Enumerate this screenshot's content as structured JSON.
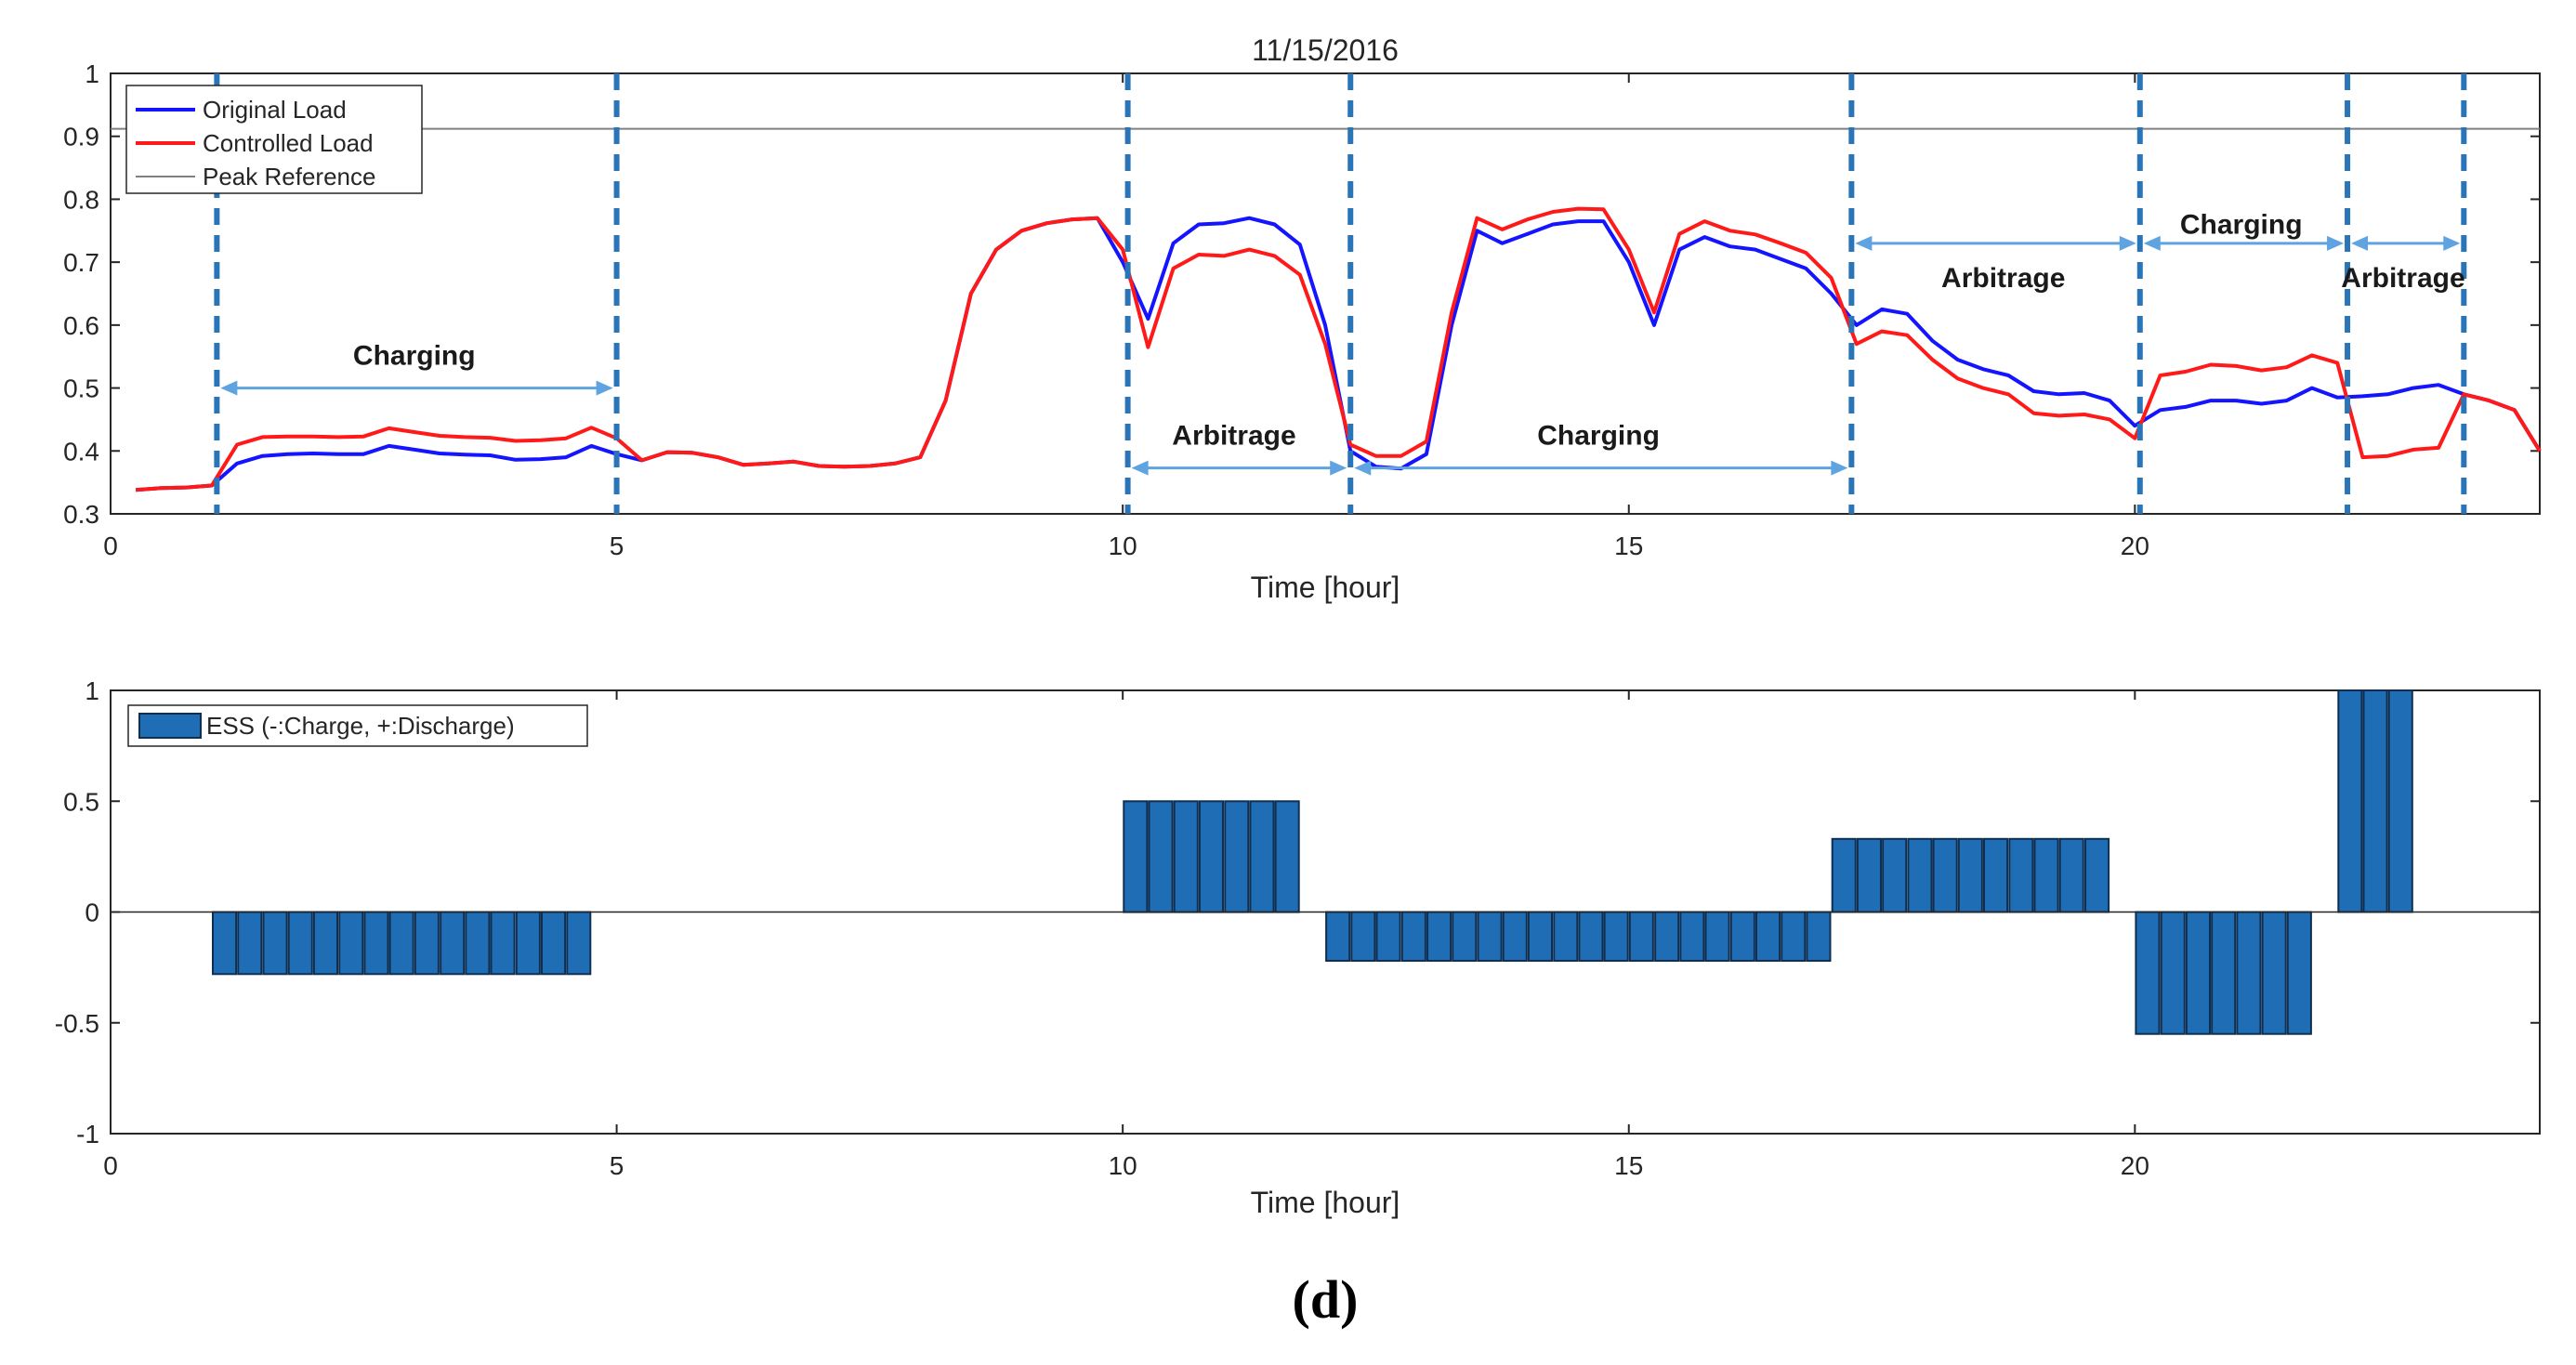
{
  "caption": "(d)",
  "chart_data": [
    {
      "type": "line",
      "title": "11/15/2016",
      "xlabel": "Time [hour]",
      "ylabel": "",
      "xlim": [
        0,
        24
      ],
      "ylim": [
        0.3,
        1
      ],
      "xticks": [
        0,
        5,
        10,
        15,
        20
      ],
      "xtick_labels": [
        "0",
        "5",
        "10",
        "15",
        "20"
      ],
      "yticks": [
        0.3,
        0.4,
        0.5,
        0.6,
        0.7,
        0.8,
        0.9,
        1
      ],
      "ytick_labels": [
        "0.3",
        "0.4",
        "0.5",
        "0.6",
        "0.7",
        "0.8",
        "0.9",
        "1"
      ],
      "legend_position": "top-left",
      "colors": {
        "original": "#1414ff",
        "controlled": "#ff1a1a",
        "reference": "#808080",
        "divider": "#2a74b8",
        "arrow": "#5fa3e0"
      },
      "series": [
        {
          "name": "Original Load",
          "color": "#1414ff",
          "x": [
            0.25,
            0.5,
            0.75,
            1,
            1.25,
            1.5,
            1.75,
            2,
            2.25,
            2.5,
            2.75,
            3,
            3.25,
            3.5,
            3.75,
            4,
            4.25,
            4.5,
            4.75,
            5,
            5.25,
            5.5,
            5.75,
            6,
            6.25,
            6.5,
            6.75,
            7,
            7.25,
            7.5,
            7.75,
            8,
            8.25,
            8.5,
            8.75,
            9,
            9.25,
            9.5,
            9.75,
            10,
            10.25,
            10.5,
            10.75,
            11,
            11.25,
            11.5,
            11.75,
            12,
            12.25,
            12.5,
            12.75,
            13,
            13.25,
            13.5,
            13.75,
            14,
            14.25,
            14.5,
            14.75,
            15,
            15.25,
            15.5,
            15.75,
            16,
            16.25,
            16.5,
            16.75,
            17,
            17.25,
            17.5,
            17.75,
            18,
            18.25,
            18.5,
            18.75,
            19,
            19.25,
            19.5,
            19.75,
            20,
            20.25,
            20.5,
            20.75,
            21,
            21.25,
            21.5,
            21.75,
            22,
            22.25,
            22.5,
            22.75,
            23,
            23.25,
            23.5,
            23.75,
            24
          ],
          "values": [
            0.338,
            0.341,
            0.342,
            0.345,
            0.38,
            0.392,
            0.395,
            0.396,
            0.395,
            0.395,
            0.408,
            0.402,
            0.396,
            0.394,
            0.393,
            0.386,
            0.387,
            0.39,
            0.408,
            0.395,
            0.385,
            0.398,
            0.397,
            0.39,
            0.378,
            0.38,
            0.383,
            0.376,
            0.375,
            0.376,
            0.38,
            0.39,
            0.48,
            0.65,
            0.72,
            0.75,
            0.762,
            0.768,
            0.77,
            0.7,
            0.61,
            0.73,
            0.76,
            0.762,
            0.77,
            0.76,
            0.728,
            0.6,
            0.4,
            0.375,
            0.372,
            0.395,
            0.6,
            0.75,
            0.73,
            0.745,
            0.76,
            0.765,
            0.765,
            0.7,
            0.6,
            0.72,
            0.74,
            0.725,
            0.72,
            0.705,
            0.69,
            0.65,
            0.6,
            0.625,
            0.618,
            0.575,
            0.545,
            0.53,
            0.52,
            0.495,
            0.49,
            0.492,
            0.48,
            0.44,
            0.465,
            0.47,
            0.48,
            0.48,
            0.475,
            0.48,
            0.5,
            0.485,
            0.487,
            0.49,
            0.5,
            0.505,
            0.49,
            0.48,
            0.465,
            0.4
          ]
        },
        {
          "name": "Controlled Load",
          "color": "#ff1a1a",
          "x": [
            0.25,
            0.5,
            0.75,
            1,
            1.25,
            1.5,
            1.75,
            2,
            2.25,
            2.5,
            2.75,
            3,
            3.25,
            3.5,
            3.75,
            4,
            4.25,
            4.5,
            4.75,
            5,
            5.25,
            5.5,
            5.75,
            6,
            6.25,
            6.5,
            6.75,
            7,
            7.25,
            7.5,
            7.75,
            8,
            8.25,
            8.5,
            8.75,
            9,
            9.25,
            9.5,
            9.75,
            10,
            10.25,
            10.5,
            10.75,
            11,
            11.25,
            11.5,
            11.75,
            12,
            12.25,
            12.5,
            12.75,
            13,
            13.25,
            13.5,
            13.75,
            14,
            14.25,
            14.5,
            14.75,
            15,
            15.25,
            15.5,
            15.75,
            16,
            16.25,
            16.5,
            16.75,
            17,
            17.25,
            17.5,
            17.75,
            18,
            18.25,
            18.5,
            18.75,
            19,
            19.25,
            19.5,
            19.75,
            20,
            20.25,
            20.5,
            20.75,
            21,
            21.25,
            21.5,
            21.75,
            22,
            22.25,
            22.5,
            22.75,
            23,
            23.25,
            23.5,
            23.75,
            24
          ],
          "values": [
            0.338,
            0.341,
            0.342,
            0.345,
            0.41,
            0.422,
            0.423,
            0.423,
            0.422,
            0.423,
            0.436,
            0.43,
            0.424,
            0.422,
            0.421,
            0.416,
            0.417,
            0.42,
            0.437,
            0.42,
            0.385,
            0.398,
            0.397,
            0.39,
            0.378,
            0.38,
            0.383,
            0.376,
            0.375,
            0.376,
            0.38,
            0.39,
            0.48,
            0.65,
            0.72,
            0.75,
            0.762,
            0.768,
            0.77,
            0.72,
            0.565,
            0.69,
            0.712,
            0.71,
            0.72,
            0.71,
            0.68,
            0.57,
            0.41,
            0.392,
            0.392,
            0.415,
            0.62,
            0.77,
            0.752,
            0.768,
            0.78,
            0.785,
            0.784,
            0.72,
            0.62,
            0.745,
            0.765,
            0.75,
            0.744,
            0.73,
            0.715,
            0.675,
            0.57,
            0.59,
            0.584,
            0.545,
            0.515,
            0.5,
            0.49,
            0.46,
            0.456,
            0.458,
            0.45,
            0.42,
            0.52,
            0.526,
            0.537,
            0.535,
            0.528,
            0.533,
            0.552,
            0.54,
            0.39,
            0.392,
            0.402,
            0.405,
            0.49,
            0.48,
            0.465,
            0.4
          ]
        },
        {
          "name": "Peak Reference",
          "color": "#808080",
          "x": [
            0,
            24
          ],
          "values": [
            0.912,
            0.912
          ]
        }
      ],
      "dividers_x": [
        1.05,
        5.0,
        10.05,
        12.25,
        17.2,
        20.05,
        22.1,
        23.25
      ],
      "annotations": [
        {
          "text": "Charging",
          "x": 3.0,
          "y": 0.552,
          "arrow": [
            1.05,
            5.0
          ],
          "arrow_y": 0.5
        },
        {
          "text": "Arbitrage",
          "x": 11.1,
          "y": 0.425,
          "arrow": [
            10.05,
            12.25
          ],
          "arrow_y": 0.373
        },
        {
          "text": "Charging",
          "x": 14.7,
          "y": 0.425,
          "arrow": [
            12.25,
            17.2
          ],
          "arrow_y": 0.373
        },
        {
          "text": "Arbitrage",
          "x": 18.7,
          "y": 0.675,
          "arrow": [
            17.2,
            20.05
          ],
          "arrow_y": 0.73
        },
        {
          "text": "Charging",
          "x": 21.05,
          "y": 0.76,
          "arrow": [
            20.05,
            22.1
          ],
          "arrow_y": 0.73
        },
        {
          "text": "Arbitrage",
          "x": 22.65,
          "y": 0.675,
          "arrow": [
            22.1,
            23.25
          ],
          "arrow_y": 0.73
        }
      ]
    },
    {
      "type": "bar",
      "title": "",
      "xlabel": "Time [hour]",
      "ylabel": "",
      "xlim": [
        0,
        24
      ],
      "ylim": [
        -1,
        1
      ],
      "xticks": [
        0,
        5,
        10,
        15,
        20
      ],
      "xtick_labels": [
        "0",
        "5",
        "10",
        "15",
        "20"
      ],
      "yticks": [
        -1,
        -0.5,
        0,
        0.5,
        1
      ],
      "ytick_labels": [
        "-1",
        "-0.5",
        "0",
        "0.5",
        "1"
      ],
      "legend_position": "top-left",
      "series": [
        {
          "name": "ESS (-:Charge, +:Discharge)",
          "color": "#1f6db4",
          "bar_width": 0.23,
          "x": [
            1.25,
            1.5,
            1.75,
            2,
            2.25,
            2.5,
            2.75,
            3,
            3.25,
            3.5,
            3.75,
            4,
            4.25,
            4.5,
            4.75,
            10.25,
            10.5,
            10.75,
            11,
            11.25,
            11.5,
            11.75,
            12.25,
            12.5,
            12.75,
            13,
            13.25,
            13.5,
            13.75,
            14,
            14.25,
            14.5,
            14.75,
            15,
            15.25,
            15.5,
            15.75,
            16,
            16.25,
            16.5,
            16.75,
            17,
            17.25,
            17.5,
            17.75,
            18,
            18.25,
            18.5,
            18.75,
            19,
            19.25,
            19.5,
            19.75,
            20.25,
            20.5,
            20.75,
            21,
            21.25,
            21.5,
            21.75,
            22.25,
            22.5,
            22.75
          ],
          "values": [
            -0.28,
            -0.28,
            -0.28,
            -0.28,
            -0.28,
            -0.28,
            -0.28,
            -0.28,
            -0.28,
            -0.28,
            -0.28,
            -0.28,
            -0.28,
            -0.28,
            -0.28,
            0.5,
            0.5,
            0.5,
            0.5,
            0.5,
            0.5,
            0.5,
            -0.22,
            -0.22,
            -0.22,
            -0.22,
            -0.22,
            -0.22,
            -0.22,
            -0.22,
            -0.22,
            -0.22,
            -0.22,
            -0.22,
            -0.22,
            -0.22,
            -0.22,
            -0.22,
            -0.22,
            -0.22,
            -0.22,
            -0.22,
            0.33,
            0.33,
            0.33,
            0.33,
            0.33,
            0.33,
            0.33,
            0.33,
            0.33,
            0.33,
            0.33,
            -0.55,
            -0.55,
            -0.55,
            -0.55,
            -0.55,
            -0.55,
            -0.55,
            1.0,
            1.0,
            1.0
          ]
        }
      ]
    }
  ]
}
